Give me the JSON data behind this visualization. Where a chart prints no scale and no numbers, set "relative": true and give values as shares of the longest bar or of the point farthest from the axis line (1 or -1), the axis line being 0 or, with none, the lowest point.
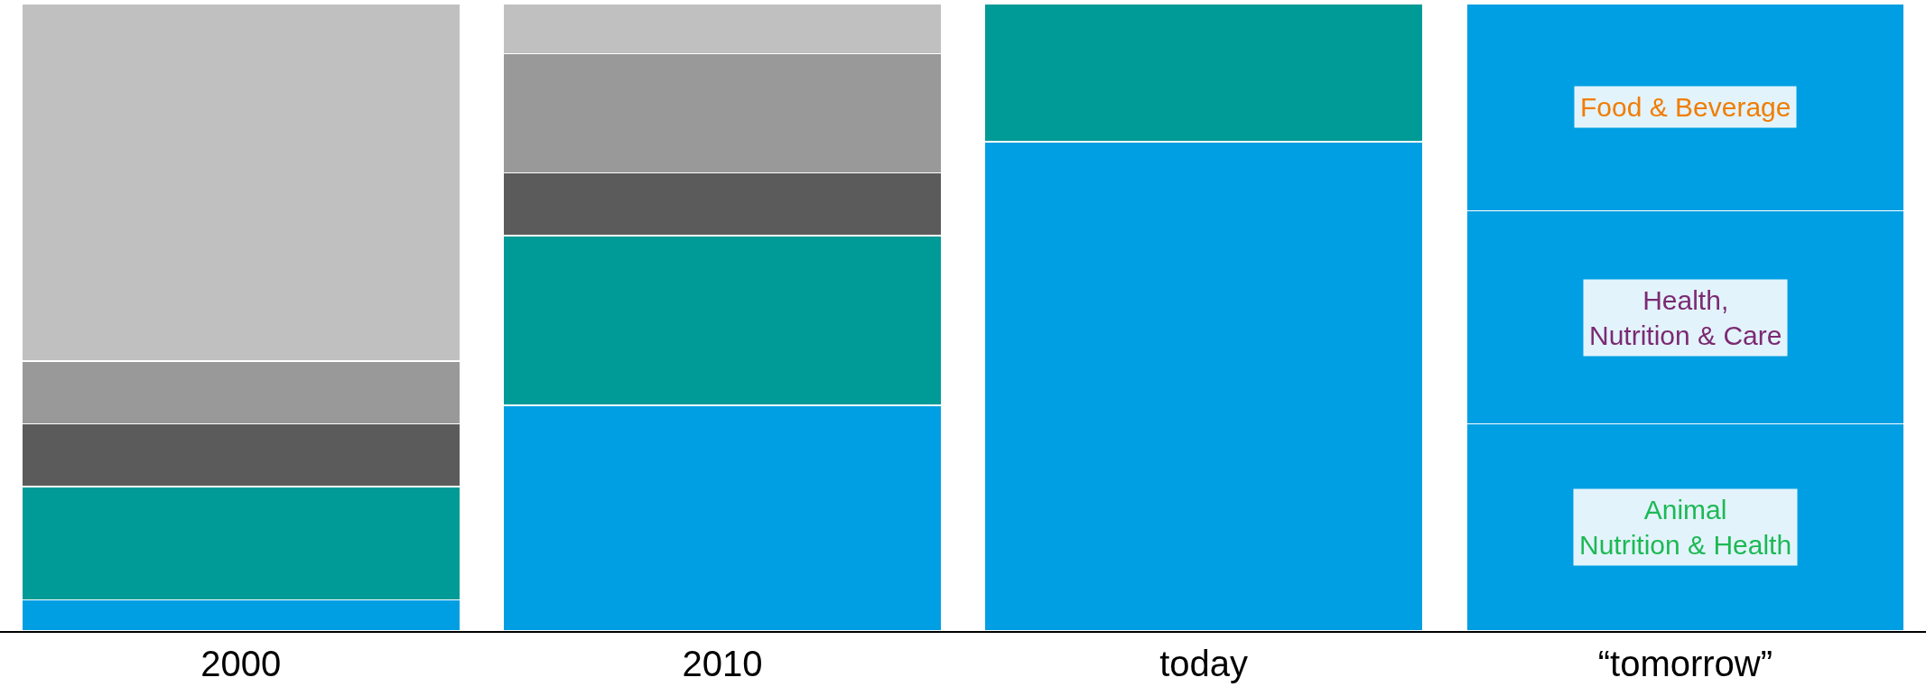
{
  "chart_data": {
    "type": "bar",
    "stacked": true,
    "relative": true,
    "categories": [
      "2000",
      "2010",
      "today",
      "“tomorrow”"
    ],
    "series": [
      {
        "color": "#009fe3",
        "values": [
          0.05,
          0.36,
          0.78,
          0.33
        ]
      },
      {
        "color": "#009a97",
        "values": [
          0.18,
          0.27,
          0.22,
          null
        ]
      },
      {
        "color": "#5b5b5b",
        "values": [
          0.1,
          0.1,
          null,
          null
        ]
      },
      {
        "color": "#999999",
        "values": [
          0.1,
          0.19,
          null,
          null
        ]
      },
      {
        "color": "#c0c0c0",
        "values": [
          0.57,
          0.08,
          null,
          null
        ]
      },
      {
        "color": "#009fe3",
        "values": [
          null,
          null,
          null,
          0.34
        ]
      },
      {
        "color": "#009fe3",
        "values": [
          null,
          null,
          null,
          0.33
        ]
      }
    ],
    "annotations": [
      "Animal\nNutrition & Health",
      "Health,\nNutrition & Care",
      "Food & Beverage"
    ]
  }
}
